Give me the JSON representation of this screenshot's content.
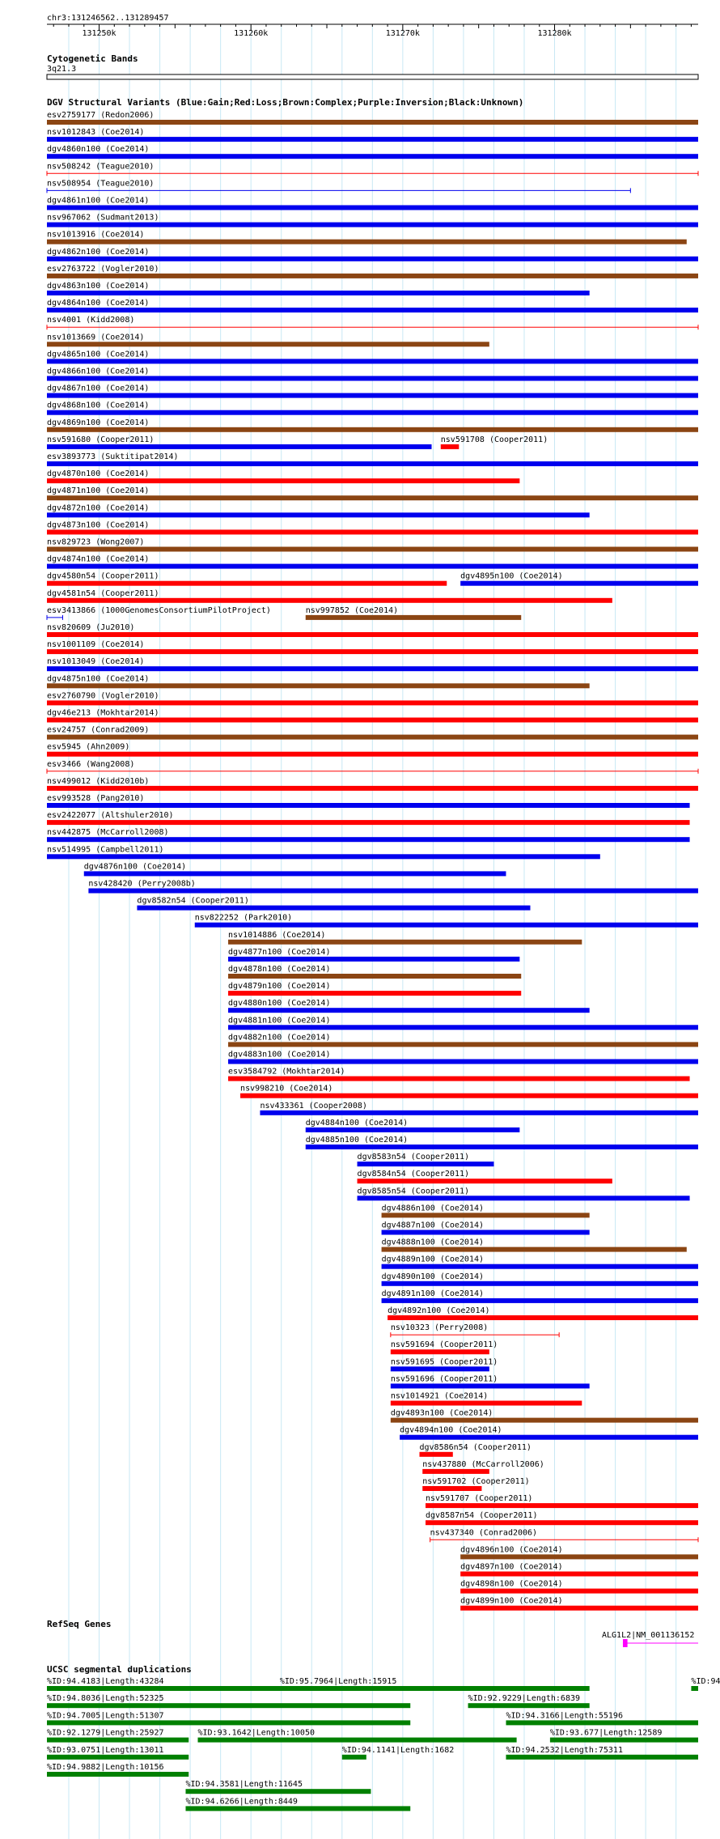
{
  "region_label": "chr3:131246562..131289457",
  "ruler": {
    "ticks": [
      {
        "label": "131250k",
        "pos": 131250000
      },
      {
        "label": "131260k",
        "pos": 131260000
      },
      {
        "label": "131270k",
        "pos": 131270000
      },
      {
        "label": "131280k",
        "pos": 131280000
      }
    ]
  },
  "cytobands": {
    "title": "Cytogenetic Bands",
    "band": "3q21.3"
  },
  "dgv": {
    "title": "DGV Structural Variants (Blue:Gain;Red:Loss;Brown:Complex;Purple:Inversion;Black:Unknown)",
    "colors": {
      "gain": "#0000ee",
      "loss": "#ff0000",
      "complex": "#8b4513"
    },
    "rows": [
      [
        {
          "label": "esv2759177 (Redon2006)",
          "type": "complex",
          "start": 131246562,
          "end": 131289457
        }
      ],
      [
        {
          "label": "nsv1012843 (Coe2014)",
          "type": "gain",
          "start": 131246562,
          "end": 131289457
        }
      ],
      [
        {
          "label": "dgv4860n100 (Coe2014)",
          "type": "gain",
          "start": 131246562,
          "end": 131289457
        }
      ],
      [
        {
          "label": "nsv508242 (Teague2010)",
          "type": "loss",
          "start": 131246562,
          "end": 131289457,
          "thin": true
        }
      ],
      [
        {
          "label": "nsv508954 (Teague2010)",
          "type": "gain",
          "start": 131246562,
          "end": 131285000,
          "thin": true
        }
      ],
      [
        {
          "label": "dgv4861n100 (Coe2014)",
          "type": "gain",
          "start": 131246562,
          "end": 131289457
        }
      ],
      [
        {
          "label": "nsv967062 (Sudmant2013)",
          "type": "gain",
          "start": 131246562,
          "end": 131289457
        }
      ],
      [
        {
          "label": "nsv1013916 (Coe2014)",
          "type": "complex",
          "start": 131246562,
          "end": 131288700
        }
      ],
      [
        {
          "label": "dgv4862n100 (Coe2014)",
          "type": "gain",
          "start": 131246562,
          "end": 131289457
        }
      ],
      [
        {
          "label": "esv2763722 (Vogler2010)",
          "type": "complex",
          "start": 131246562,
          "end": 131289457
        }
      ],
      [
        {
          "label": "dgv4863n100 (Coe2014)",
          "type": "gain",
          "start": 131246562,
          "end": 131282300
        }
      ],
      [
        {
          "label": "dgv4864n100 (Coe2014)",
          "type": "gain",
          "start": 131246562,
          "end": 131289457
        }
      ],
      [
        {
          "label": "nsv4001 (Kidd2008)",
          "type": "loss",
          "start": 131246562,
          "end": 131289457,
          "thin": true
        }
      ],
      [
        {
          "label": "nsv1013669 (Coe2014)",
          "type": "complex",
          "start": 131246562,
          "end": 131275700
        }
      ],
      [
        {
          "label": "dgv4865n100 (Coe2014)",
          "type": "gain",
          "start": 131246562,
          "end": 131289457
        }
      ],
      [
        {
          "label": "dgv4866n100 (Coe2014)",
          "type": "gain",
          "start": 131246562,
          "end": 131289457
        }
      ],
      [
        {
          "label": "dgv4867n100 (Coe2014)",
          "type": "gain",
          "start": 131246562,
          "end": 131289457
        }
      ],
      [
        {
          "label": "dgv4868n100 (Coe2014)",
          "type": "gain",
          "start": 131246562,
          "end": 131289457
        }
      ],
      [
        {
          "label": "dgv4869n100 (Coe2014)",
          "type": "complex",
          "start": 131246562,
          "end": 131289457
        }
      ],
      [
        {
          "label": "nsv591680 (Cooper2011)",
          "type": "gain",
          "start": 131246562,
          "end": 131271900
        },
        {
          "label": "nsv591708 (Cooper2011)",
          "type": "loss",
          "start": 131272500,
          "end": 131273700
        }
      ],
      [
        {
          "label": "esv3893773 (Suktitipat2014)",
          "type": "gain",
          "start": 131246562,
          "end": 131289457
        }
      ],
      [
        {
          "label": "dgv4870n100 (Coe2014)",
          "type": "loss",
          "start": 131246562,
          "end": 131277700
        }
      ],
      [
        {
          "label": "dgv4871n100 (Coe2014)",
          "type": "complex",
          "start": 131246562,
          "end": 131289457
        }
      ],
      [
        {
          "label": "dgv4872n100 (Coe2014)",
          "type": "gain",
          "start": 131246562,
          "end": 131282300
        }
      ],
      [
        {
          "label": "dgv4873n100 (Coe2014)",
          "type": "loss",
          "start": 131246562,
          "end": 131289457
        }
      ],
      [
        {
          "label": "nsv829723 (Wong2007)",
          "type": "complex",
          "start": 131246562,
          "end": 131289457
        }
      ],
      [
        {
          "label": "dgv4874n100 (Coe2014)",
          "type": "gain",
          "start": 131246562,
          "end": 131289457
        }
      ],
      [
        {
          "label": "dgv4580n54 (Cooper2011)",
          "type": "loss",
          "start": 131246562,
          "end": 131272900
        },
        {
          "label": "dgv4895n100 (Coe2014)",
          "type": "gain",
          "start": 131273800,
          "end": 131289457
        }
      ],
      [
        {
          "label": "dgv4581n54 (Cooper2011)",
          "type": "loss",
          "start": 131246562,
          "end": 131283800
        }
      ],
      [
        {
          "label": "esv3413866 (1000GenomesConsortiumPilotProject)",
          "type": "gain",
          "start": 131246562,
          "end": 131247600,
          "thin": true
        },
        {
          "label": "nsv997852 (Coe2014)",
          "type": "complex",
          "start": 131263600,
          "end": 131277800
        }
      ],
      [
        {
          "label": "nsv820609 (Ju2010)",
          "type": "loss",
          "start": 131246562,
          "end": 131289457
        }
      ],
      [
        {
          "label": "nsv1001109 (Coe2014)",
          "type": "loss",
          "start": 131246562,
          "end": 131289457
        }
      ],
      [
        {
          "label": "nsv1013049 (Coe2014)",
          "type": "gain",
          "start": 131246562,
          "end": 131289457
        }
      ],
      [
        {
          "label": "dgv4875n100 (Coe2014)",
          "type": "complex",
          "start": 131246562,
          "end": 131282300
        }
      ],
      [
        {
          "label": "esv2760790 (Vogler2010)",
          "type": "loss",
          "start": 131246562,
          "end": 131289457
        }
      ],
      [
        {
          "label": "dgv46e213 (Mokhtar2014)",
          "type": "loss",
          "start": 131246562,
          "end": 131289457
        }
      ],
      [
        {
          "label": "esv24757 (Conrad2009)",
          "type": "complex",
          "start": 131246562,
          "end": 131289457
        }
      ],
      [
        {
          "label": "esv5945 (Ahn2009)",
          "type": "loss",
          "start": 131246562,
          "end": 131289457
        }
      ],
      [
        {
          "label": "esv3466 (Wang2008)",
          "type": "loss",
          "start": 131246562,
          "end": 131289457,
          "thin": true
        }
      ],
      [
        {
          "label": "nsv499012 (Kidd2010b)",
          "type": "loss",
          "start": 131246562,
          "end": 131289457
        }
      ],
      [
        {
          "label": "esv993528 (Pang2010)",
          "type": "gain",
          "start": 131246562,
          "end": 131288900
        }
      ],
      [
        {
          "label": "esv2422077 (Altshuler2010)",
          "type": "loss",
          "start": 131246562,
          "end": 131288900
        }
      ],
      [
        {
          "label": "nsv442875 (McCarroll2008)",
          "type": "gain",
          "start": 131246562,
          "end": 131288900
        }
      ],
      [
        {
          "label": "nsv514995 (Campbell2011)",
          "type": "gain",
          "start": 131246562,
          "end": 131283000
        }
      ],
      [
        {
          "label": "dgv4876n100 (Coe2014)",
          "type": "gain",
          "start": 131249000,
          "end": 131276800
        }
      ],
      [
        {
          "label": "nsv428420 (Perry2008b)",
          "type": "gain",
          "start": 131249300,
          "end": 131289457
        }
      ],
      [
        {
          "label": "dgv8582n54 (Cooper2011)",
          "type": "gain",
          "start": 131252500,
          "end": 131278400
        }
      ],
      [
        {
          "label": "nsv822252 (Park2010)",
          "type": "gain",
          "start": 131256300,
          "end": 131289457
        }
      ],
      [
        {
          "label": "nsv1014886 (Coe2014)",
          "type": "complex",
          "start": 131258500,
          "end": 131281800
        }
      ],
      [
        {
          "label": "dgv4877n100 (Coe2014)",
          "type": "gain",
          "start": 131258500,
          "end": 131277700
        }
      ],
      [
        {
          "label": "dgv4878n100 (Coe2014)",
          "type": "complex",
          "start": 131258500,
          "end": 131277800
        }
      ],
      [
        {
          "label": "dgv4879n100 (Coe2014)",
          "type": "loss",
          "start": 131258500,
          "end": 131277800
        }
      ],
      [
        {
          "label": "dgv4880n100 (Coe2014)",
          "type": "gain",
          "start": 131258500,
          "end": 131282300
        }
      ],
      [
        {
          "label": "dgv4881n100 (Coe2014)",
          "type": "gain",
          "start": 131258500,
          "end": 131289457
        }
      ],
      [
        {
          "label": "dgv4882n100 (Coe2014)",
          "type": "complex",
          "start": 131258500,
          "end": 131289457
        }
      ],
      [
        {
          "label": "dgv4883n100 (Coe2014)",
          "type": "gain",
          "start": 131258500,
          "end": 131289457
        }
      ],
      [
        {
          "label": "esv3584792 (Mokhtar2014)",
          "type": "loss",
          "start": 131258500,
          "end": 131288900
        }
      ],
      [
        {
          "label": "nsv998210 (Coe2014)",
          "type": "loss",
          "start": 131259300,
          "end": 131289457
        }
      ],
      [
        {
          "label": "nsv433361 (Cooper2008)",
          "type": "gain",
          "start": 131260600,
          "end": 131289457
        }
      ],
      [
        {
          "label": "dgv4884n100 (Coe2014)",
          "type": "gain",
          "start": 131263600,
          "end": 131277700
        }
      ],
      [
        {
          "label": "dgv4885n100 (Coe2014)",
          "type": "gain",
          "start": 131263600,
          "end": 131289457
        }
      ],
      [
        {
          "label": "dgv8583n54 (Cooper2011)",
          "type": "gain",
          "start": 131267000,
          "end": 131276000
        }
      ],
      [
        {
          "label": "dgv8584n54 (Cooper2011)",
          "type": "loss",
          "start": 131267000,
          "end": 131283800
        }
      ],
      [
        {
          "label": "dgv8585n54 (Cooper2011)",
          "type": "gain",
          "start": 131267000,
          "end": 131288900
        }
      ],
      [
        {
          "label": "dgv4886n100 (Coe2014)",
          "type": "complex",
          "start": 131268600,
          "end": 131282300
        }
      ],
      [
        {
          "label": "dgv4887n100 (Coe2014)",
          "type": "gain",
          "start": 131268600,
          "end": 131282300
        }
      ],
      [
        {
          "label": "dgv4888n100 (Coe2014)",
          "type": "complex",
          "start": 131268600,
          "end": 131288700
        }
      ],
      [
        {
          "label": "dgv4889n100 (Coe2014)",
          "type": "gain",
          "start": 131268600,
          "end": 131289457
        }
      ],
      [
        {
          "label": "dgv4890n100 (Coe2014)",
          "type": "gain",
          "start": 131268600,
          "end": 131289457
        }
      ],
      [
        {
          "label": "dgv4891n100 (Coe2014)",
          "type": "gain",
          "start": 131268600,
          "end": 131289457
        }
      ],
      [
        {
          "label": "dgv4892n100 (Coe2014)",
          "type": "loss",
          "start": 131269000,
          "end": 131289457
        }
      ],
      [
        {
          "label": "nsv10323 (Perry2008)",
          "type": "loss",
          "start": 131269200,
          "end": 131280300,
          "thin": true
        }
      ],
      [
        {
          "label": "nsv591694 (Cooper2011)",
          "type": "loss",
          "start": 131269200,
          "end": 131275700
        }
      ],
      [
        {
          "label": "nsv591695 (Cooper2011)",
          "type": "gain",
          "start": 131269200,
          "end": 131275700
        }
      ],
      [
        {
          "label": "nsv591696 (Cooper2011)",
          "type": "gain",
          "start": 131269200,
          "end": 131282300
        }
      ],
      [
        {
          "label": "nsv1014921 (Coe2014)",
          "type": "loss",
          "start": 131269200,
          "end": 131281800
        }
      ],
      [
        {
          "label": "dgv4893n100 (Coe2014)",
          "type": "complex",
          "start": 131269200,
          "end": 131289457
        }
      ],
      [
        {
          "label": "dgv4894n100 (Coe2014)",
          "type": "gain",
          "start": 131269800,
          "end": 131289457
        }
      ],
      [
        {
          "label": "dgv8586n54 (Cooper2011)",
          "type": "loss",
          "start": 131271100,
          "end": 131273300
        }
      ],
      [
        {
          "label": "nsv437880 (McCarroll2006)",
          "type": "loss",
          "start": 131271300,
          "end": 131275700
        }
      ],
      [
        {
          "label": "nsv591702 (Cooper2011)",
          "type": "loss",
          "start": 131271300,
          "end": 131275200
        }
      ],
      [
        {
          "label": "nsv591707 (Cooper2011)",
          "type": "loss",
          "start": 131271500,
          "end": 131289457
        }
      ],
      [
        {
          "label": "dgv8587n54 (Cooper2011)",
          "type": "loss",
          "start": 131271500,
          "end": 131289457
        }
      ],
      [
        {
          "label": "nsv437340 (Conrad2006)",
          "type": "loss",
          "start": 131271800,
          "end": 131289457,
          "thin": true
        }
      ],
      [
        {
          "label": "dgv4896n100 (Coe2014)",
          "type": "complex",
          "start": 131273800,
          "end": 131289457
        }
      ],
      [
        {
          "label": "dgv4897n100 (Coe2014)",
          "type": "loss",
          "start": 131273800,
          "end": 131289457
        }
      ],
      [
        {
          "label": "dgv4898n100 (Coe2014)",
          "type": "loss",
          "start": 131273800,
          "end": 131289457
        }
      ],
      [
        {
          "label": "dgv4899n100 (Coe2014)",
          "type": "loss",
          "start": 131273800,
          "end": 131289457
        }
      ]
    ]
  },
  "refseq": {
    "title": "RefSeq Genes",
    "gene_label": "ALG1L2|NM_001136152",
    "gene_color": "#ff00ff",
    "gene_start": 131284500,
    "gene_end": 131289457,
    "exon_start": 131284500,
    "exon_end": 131284800
  },
  "segdups": {
    "title": "UCSC segmental duplications",
    "color": "#008000",
    "rows": [
      [
        {
          "label": "%ID:94.4183|Length:43284",
          "start": 131246562,
          "end": 131269000
        },
        {
          "label": "%ID:95.7964|Length:15915",
          "start": 131261900,
          "end": 131282300
        },
        {
          "label": "%ID:94",
          "start": 131289000,
          "end": 131289457
        }
      ],
      [
        {
          "label": "%ID:94.8036|Length:52325",
          "start": 131246562,
          "end": 131270500
        },
        {
          "label": "%ID:92.9229|Length:6839",
          "start": 131274300,
          "end": 131282300
        }
      ],
      [
        {
          "label": "%ID:94.7005|Length:51307",
          "start": 131246562,
          "end": 131270500
        },
        {
          "label": "%ID:94.3166|Length:55196",
          "start": 131276800,
          "end": 131289457
        }
      ],
      [
        {
          "label": "%ID:92.1279|Length:25927",
          "start": 131246562,
          "end": 131255900
        },
        {
          "label": "%ID:93.1642|Length:10050",
          "start": 131256500,
          "end": 131277500
        },
        {
          "label": "%ID:93.677|Length:12589",
          "start": 131279700,
          "end": 131289457
        }
      ],
      [
        {
          "label": "%ID:93.0751|Length:13011",
          "start": 131246562,
          "end": 131255900
        },
        {
          "label": "%ID:94.1141|Length:1682",
          "start": 131266000,
          "end": 131267600
        },
        {
          "label": "%ID:94.2532|Length:75311",
          "start": 131276800,
          "end": 131289457
        }
      ],
      [
        {
          "label": "%ID:94.9882|Length:10156",
          "start": 131246562,
          "end": 131255900
        }
      ],
      [
        {
          "label": "%ID:94.3581|Length:11645",
          "start": 131255700,
          "end": 131267900
        }
      ],
      [
        {
          "label": "%ID:94.6266|Length:8449",
          "start": 131255700,
          "end": 131270500
        }
      ]
    ]
  }
}
